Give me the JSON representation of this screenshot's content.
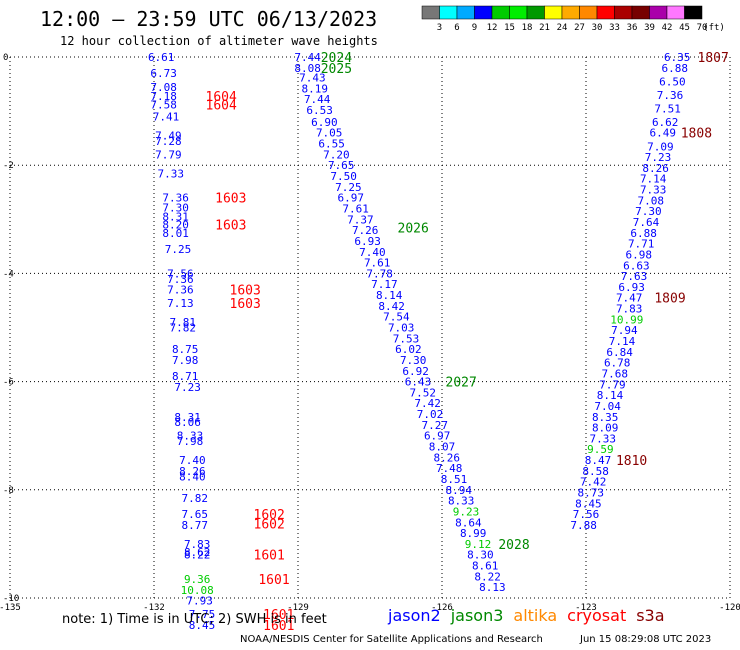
{
  "chart_data": {
    "type": "scatter",
    "title": "12:00 — 23:59 UTC 06/13/2023",
    "subtitle": "12 hour collection of altimeter wave heights",
    "xlim": [
      -135,
      -120
    ],
    "ylim": [
      -10,
      0
    ],
    "x_ticks": [
      "-135",
      "-132",
      "-129",
      "-126",
      "-123",
      "-120"
    ],
    "y_ticks": [
      "0",
      "-2",
      "-4",
      "-6",
      "-8",
      "-10"
    ],
    "grid": true,
    "color_scale": {
      "unit": "(ft)",
      "labels": [
        "3",
        "6",
        "9",
        "12",
        "15",
        "18",
        "21",
        "24",
        "27",
        "30",
        "33",
        "36",
        "39",
        "42",
        "45",
        "70"
      ],
      "colors": [
        "#777777",
        "#00ffff",
        "#00aaff",
        "#0000ff",
        "#00cc00",
        "#00ee00",
        "#009900",
        "#ffff00",
        "#ffaa00",
        "#ff8800",
        "#ff0000",
        "#aa0000",
        "#770000",
        "#aa00aa",
        "#ff77ff",
        "#000000"
      ]
    },
    "series": [
      {
        "name": "jason2",
        "color": "#0000ff",
        "points": []
      },
      {
        "name": "jason3",
        "color": "#008800",
        "points": [
          {
            "x": -128.8,
            "y": 0.0,
            "v": "7.44"
          },
          {
            "x": -128.8,
            "y": -0.2,
            "v": "8.08"
          },
          {
            "x": -128.7,
            "y": -0.38,
            "v": "7.43"
          },
          {
            "x": -128.65,
            "y": -0.58,
            "v": "8.19"
          },
          {
            "x": -128.6,
            "y": -0.78,
            "v": "7.44"
          },
          {
            "x": -128.55,
            "y": -0.98,
            "v": "6.53"
          },
          {
            "x": -128.45,
            "y": -1.2,
            "v": "6.90"
          },
          {
            "x": -128.35,
            "y": -1.4,
            "v": "7.05"
          },
          {
            "x": -128.3,
            "y": -1.6,
            "v": "6.55"
          },
          {
            "x": -128.2,
            "y": -1.8,
            "v": "7.20"
          },
          {
            "x": -128.1,
            "y": -2.0,
            "v": "7.65"
          },
          {
            "x": -128.05,
            "y": -2.2,
            "v": "7.50"
          },
          {
            "x": -127.95,
            "y": -2.4,
            "v": "7.25"
          },
          {
            "x": -127.9,
            "y": -2.6,
            "v": "6.97"
          },
          {
            "x": -127.8,
            "y": -2.8,
            "v": "7.61"
          },
          {
            "x": -127.7,
            "y": -3.0,
            "v": "7.37"
          },
          {
            "x": -127.6,
            "y": -3.2,
            "v": "7.26"
          },
          {
            "x": -127.55,
            "y": -3.4,
            "v": "6.93"
          },
          {
            "x": -127.45,
            "y": -3.6,
            "v": "7.40"
          },
          {
            "x": -127.35,
            "y": -3.8,
            "v": "7.61"
          },
          {
            "x": -127.3,
            "y": -4.0,
            "v": "7.78"
          },
          {
            "x": -127.2,
            "y": -4.2,
            "v": "7.17"
          },
          {
            "x": -127.1,
            "y": -4.4,
            "v": "8.14"
          },
          {
            "x": -127.05,
            "y": -4.6,
            "v": "8.42"
          },
          {
            "x": -126.95,
            "y": -4.8,
            "v": "7.54"
          },
          {
            "x": -126.85,
            "y": -5.0,
            "v": "7.03"
          },
          {
            "x": -126.75,
            "y": -5.2,
            "v": "7.53"
          },
          {
            "x": -126.7,
            "y": -5.4,
            "v": "6.02"
          },
          {
            "x": -126.6,
            "y": -5.6,
            "v": "7.30"
          },
          {
            "x": -126.55,
            "y": -5.8,
            "v": "6.92"
          },
          {
            "x": -126.5,
            "y": -6.0,
            "v": "6.43"
          },
          {
            "x": -126.4,
            "y": -6.2,
            "v": "7.52"
          },
          {
            "x": -126.3,
            "y": -6.4,
            "v": "7.42"
          },
          {
            "x": -126.25,
            "y": -6.6,
            "v": "7.02"
          },
          {
            "x": -126.15,
            "y": -6.8,
            "v": "7.27"
          },
          {
            "x": -126.1,
            "y": -7.0,
            "v": "6.97"
          },
          {
            "x": -126.0,
            "y": -7.2,
            "v": "8.07"
          },
          {
            "x": -125.9,
            "y": -7.4,
            "v": "8.26"
          },
          {
            "x": -125.85,
            "y": -7.6,
            "v": "7.48"
          },
          {
            "x": -125.75,
            "y": -7.8,
            "v": "8.51"
          },
          {
            "x": -125.65,
            "y": -8.0,
            "v": "8.94"
          },
          {
            "x": -125.6,
            "y": -8.2,
            "v": "8.33"
          },
          {
            "x": -125.5,
            "y": -8.4,
            "v": "9.23"
          },
          {
            "x": -125.45,
            "y": -8.6,
            "v": "8.64"
          },
          {
            "x": -125.35,
            "y": -8.8,
            "v": "8.99"
          },
          {
            "x": -125.25,
            "y": -9.0,
            "v": "9.12"
          },
          {
            "x": -125.2,
            "y": -9.2,
            "v": "8.30"
          },
          {
            "x": -125.1,
            "y": -9.4,
            "v": "8.61"
          },
          {
            "x": -125.05,
            "y": -9.6,
            "v": "8.22"
          },
          {
            "x": -124.95,
            "y": -9.8,
            "v": "8.13"
          }
        ]
      },
      {
        "name": "altika",
        "color": "#ff8800",
        "points": []
      },
      {
        "name": "cryosat",
        "color": "#ff0000",
        "points": [
          {
            "x": -131.85,
            "y": 0.0,
            "v": "6.61"
          },
          {
            "x": -131.8,
            "y": -0.3,
            "v": "6.73"
          },
          {
            "x": -131.8,
            "y": -0.55,
            "v": "7.08"
          },
          {
            "x": -131.8,
            "y": -0.72,
            "v": "7.18"
          },
          {
            "x": -131.8,
            "y": -0.88,
            "v": "7.58"
          },
          {
            "x": -131.75,
            "y": -1.1,
            "v": "7.41"
          },
          {
            "x": -131.7,
            "y": -1.45,
            "v": "7.49"
          },
          {
            "x": -131.7,
            "y": -1.55,
            "v": "7.28"
          },
          {
            "x": -131.7,
            "y": -1.8,
            "v": "7.79"
          },
          {
            "x": -131.65,
            "y": -2.15,
            "v": "7.33"
          },
          {
            "x": -131.55,
            "y": -2.6,
            "v": "7.36"
          },
          {
            "x": -131.55,
            "y": -2.78,
            "v": "7.30"
          },
          {
            "x": -131.55,
            "y": -2.95,
            "v": "8.31"
          },
          {
            "x": -131.55,
            "y": -3.1,
            "v": "8.20"
          },
          {
            "x": -131.55,
            "y": -3.25,
            "v": "8.01"
          },
          {
            "x": -131.5,
            "y": -3.55,
            "v": "7.25"
          },
          {
            "x": -131.45,
            "y": -4.0,
            "v": "7.56"
          },
          {
            "x": -131.45,
            "y": -4.1,
            "v": "7.36"
          },
          {
            "x": -131.45,
            "y": -4.3,
            "v": "7.36"
          },
          {
            "x": -131.45,
            "y": -4.55,
            "v": "7.13"
          },
          {
            "x": -131.4,
            "y": -4.9,
            "v": "7.81"
          },
          {
            "x": -131.4,
            "y": -5.0,
            "v": "7.82"
          },
          {
            "x": -131.35,
            "y": -5.4,
            "v": "8.75"
          },
          {
            "x": -131.35,
            "y": -5.6,
            "v": "7.98"
          },
          {
            "x": -131.35,
            "y": -5.9,
            "v": "8.71"
          },
          {
            "x": -131.3,
            "y": -6.1,
            "v": "7.23"
          },
          {
            "x": -131.3,
            "y": -6.65,
            "v": "8.31"
          },
          {
            "x": -131.3,
            "y": -6.75,
            "v": "8.06"
          },
          {
            "x": -131.25,
            "y": -7.0,
            "v": "8.33"
          },
          {
            "x": -131.25,
            "y": -7.1,
            "v": "7.98"
          },
          {
            "x": -131.2,
            "y": -7.45,
            "v": "7.40"
          },
          {
            "x": -131.2,
            "y": -7.65,
            "v": "8.26"
          },
          {
            "x": -131.2,
            "y": -7.75,
            "v": "8.40"
          },
          {
            "x": -131.15,
            "y": -8.15,
            "v": "7.82"
          },
          {
            "x": -131.15,
            "y": -8.45,
            "v": "7.65"
          },
          {
            "x": -131.15,
            "y": -8.65,
            "v": "8.77"
          },
          {
            "x": -131.1,
            "y": -9.0,
            "v": "7.83"
          },
          {
            "x": -131.1,
            "y": -9.15,
            "v": "8.62"
          },
          {
            "x": -131.1,
            "y": -9.2,
            "v": "8.22"
          },
          {
            "x": -131.1,
            "y": -9.65,
            "v": "9.36"
          },
          {
            "x": -131.1,
            "y": -9.85,
            "v": "10.08"
          },
          {
            "x": -131.05,
            "y": -10.05,
            "v": "7.93"
          },
          {
            "x": -131.0,
            "y": -10.3,
            "v": "7.75"
          },
          {
            "x": -131.0,
            "y": -10.5,
            "v": "8.45"
          }
        ]
      },
      {
        "name": "s3a",
        "color": "#880000",
        "points": [
          {
            "x": -121.1,
            "y": 0.0,
            "v": "6.35"
          },
          {
            "x": -121.15,
            "y": -0.2,
            "v": "6.88"
          },
          {
            "x": -121.2,
            "y": -0.45,
            "v": "6.50"
          },
          {
            "x": -121.25,
            "y": -0.7,
            "v": "7.36"
          },
          {
            "x": -121.3,
            "y": -0.95,
            "v": "7.51"
          },
          {
            "x": -121.35,
            "y": -1.2,
            "v": "6.62"
          },
          {
            "x": -121.4,
            "y": -1.4,
            "v": "6.49"
          },
          {
            "x": -121.45,
            "y": -1.65,
            "v": "7.09"
          },
          {
            "x": -121.5,
            "y": -1.85,
            "v": "7.23"
          },
          {
            "x": -121.55,
            "y": -2.05,
            "v": "8.26"
          },
          {
            "x": -121.6,
            "y": -2.25,
            "v": "7.14"
          },
          {
            "x": -121.6,
            "y": -2.45,
            "v": "7.33"
          },
          {
            "x": -121.65,
            "y": -2.65,
            "v": "7.08"
          },
          {
            "x": -121.7,
            "y": -2.85,
            "v": "7.30"
          },
          {
            "x": -121.75,
            "y": -3.05,
            "v": "7.64"
          },
          {
            "x": -121.8,
            "y": -3.25,
            "v": "6.88"
          },
          {
            "x": -121.85,
            "y": -3.45,
            "v": "7.71"
          },
          {
            "x": -121.9,
            "y": -3.65,
            "v": "6.98"
          },
          {
            "x": -121.95,
            "y": -3.85,
            "v": "6.63"
          },
          {
            "x": -122.0,
            "y": -4.05,
            "v": "7.63"
          },
          {
            "x": -122.05,
            "y": -4.25,
            "v": "6.93"
          },
          {
            "x": -122.1,
            "y": -4.45,
            "v": "7.47"
          },
          {
            "x": -122.1,
            "y": -4.65,
            "v": "7.83"
          },
          {
            "x": -122.15,
            "y": -4.85,
            "v": "10.99"
          },
          {
            "x": -122.2,
            "y": -5.05,
            "v": "7.94"
          },
          {
            "x": -122.25,
            "y": -5.25,
            "v": "7.14"
          },
          {
            "x": -122.3,
            "y": -5.45,
            "v": "6.84"
          },
          {
            "x": -122.35,
            "y": -5.65,
            "v": "6.78"
          },
          {
            "x": -122.4,
            "y": -5.85,
            "v": "7.68"
          },
          {
            "x": -122.45,
            "y": -6.05,
            "v": "7.79"
          },
          {
            "x": -122.5,
            "y": -6.25,
            "v": "8.14"
          },
          {
            "x": -122.55,
            "y": -6.45,
            "v": "7.04"
          },
          {
            "x": -122.6,
            "y": -6.65,
            "v": "8.35"
          },
          {
            "x": -122.6,
            "y": -6.85,
            "v": "8.09"
          },
          {
            "x": -122.65,
            "y": -7.05,
            "v": "7.33"
          },
          {
            "x": -122.7,
            "y": -7.25,
            "v": "9.59"
          },
          {
            "x": -122.75,
            "y": -7.45,
            "v": "8.47"
          },
          {
            "x": -122.8,
            "y": -7.65,
            "v": "8.58"
          },
          {
            "x": -122.85,
            "y": -7.85,
            "v": "7.42"
          },
          {
            "x": -122.9,
            "y": -8.05,
            "v": "8.73"
          },
          {
            "x": -122.95,
            "y": -8.25,
            "v": "8.45"
          },
          {
            "x": -123.0,
            "y": -8.45,
            "v": "7.56"
          },
          {
            "x": -123.05,
            "y": -8.65,
            "v": "7.88"
          }
        ]
      }
    ],
    "pass_labels": [
      {
        "text": "2024",
        "series": "jason3",
        "x": -128.2,
        "y": 0.0
      },
      {
        "text": "2025",
        "series": "jason3",
        "x": -128.2,
        "y": -0.2
      },
      {
        "text": "2026",
        "series": "jason3",
        "x": -126.6,
        "y": -3.15
      },
      {
        "text": "2027",
        "series": "jason3",
        "x": -125.6,
        "y": -6.0
      },
      {
        "text": "2028",
        "series": "jason3",
        "x": -124.5,
        "y": -9.0
      },
      {
        "text": "1604",
        "series": "cryosat",
        "x": -130.6,
        "y": -0.72
      },
      {
        "text": "1604",
        "series": "cryosat",
        "x": -130.6,
        "y": -0.88
      },
      {
        "text": "1603",
        "series": "cryosat",
        "x": -130.4,
        "y": -2.6
      },
      {
        "text": "1603",
        "series": "cryosat",
        "x": -130.4,
        "y": -3.1
      },
      {
        "text": "1603",
        "series": "cryosat",
        "x": -130.1,
        "y": -4.3
      },
      {
        "text": "1603",
        "series": "cryosat",
        "x": -130.1,
        "y": -4.55
      },
      {
        "text": "1602",
        "series": "cryosat",
        "x": -129.6,
        "y": -8.45
      },
      {
        "text": "1602",
        "series": "cryosat",
        "x": -129.6,
        "y": -8.62
      },
      {
        "text": "1601",
        "series": "cryosat",
        "x": -129.6,
        "y": -9.2
      },
      {
        "text": "1601",
        "series": "cryosat",
        "x": -129.5,
        "y": -9.65
      },
      {
        "text": "1601",
        "series": "cryosat",
        "x": -129.4,
        "y": -10.3
      },
      {
        "text": "1601",
        "series": "cryosat",
        "x": -129.4,
        "y": -10.5
      },
      {
        "text": "1807",
        "series": "s3a",
        "x": -120.35,
        "y": 0.0
      },
      {
        "text": "1808",
        "series": "s3a",
        "x": -120.7,
        "y": -1.4
      },
      {
        "text": "1809",
        "series": "s3a",
        "x": -121.25,
        "y": -4.45
      },
      {
        "text": "1810",
        "series": "s3a",
        "x": -122.05,
        "y": -7.45
      }
    ]
  },
  "footer": {
    "note": "note: 1) Time is in UTC; 2) SWH is in feet",
    "credit": "NOAA/NESDIS Center for Satellite Applications and Research",
    "timestamp": "Jun 15 08:29:08 UTC 2023"
  }
}
